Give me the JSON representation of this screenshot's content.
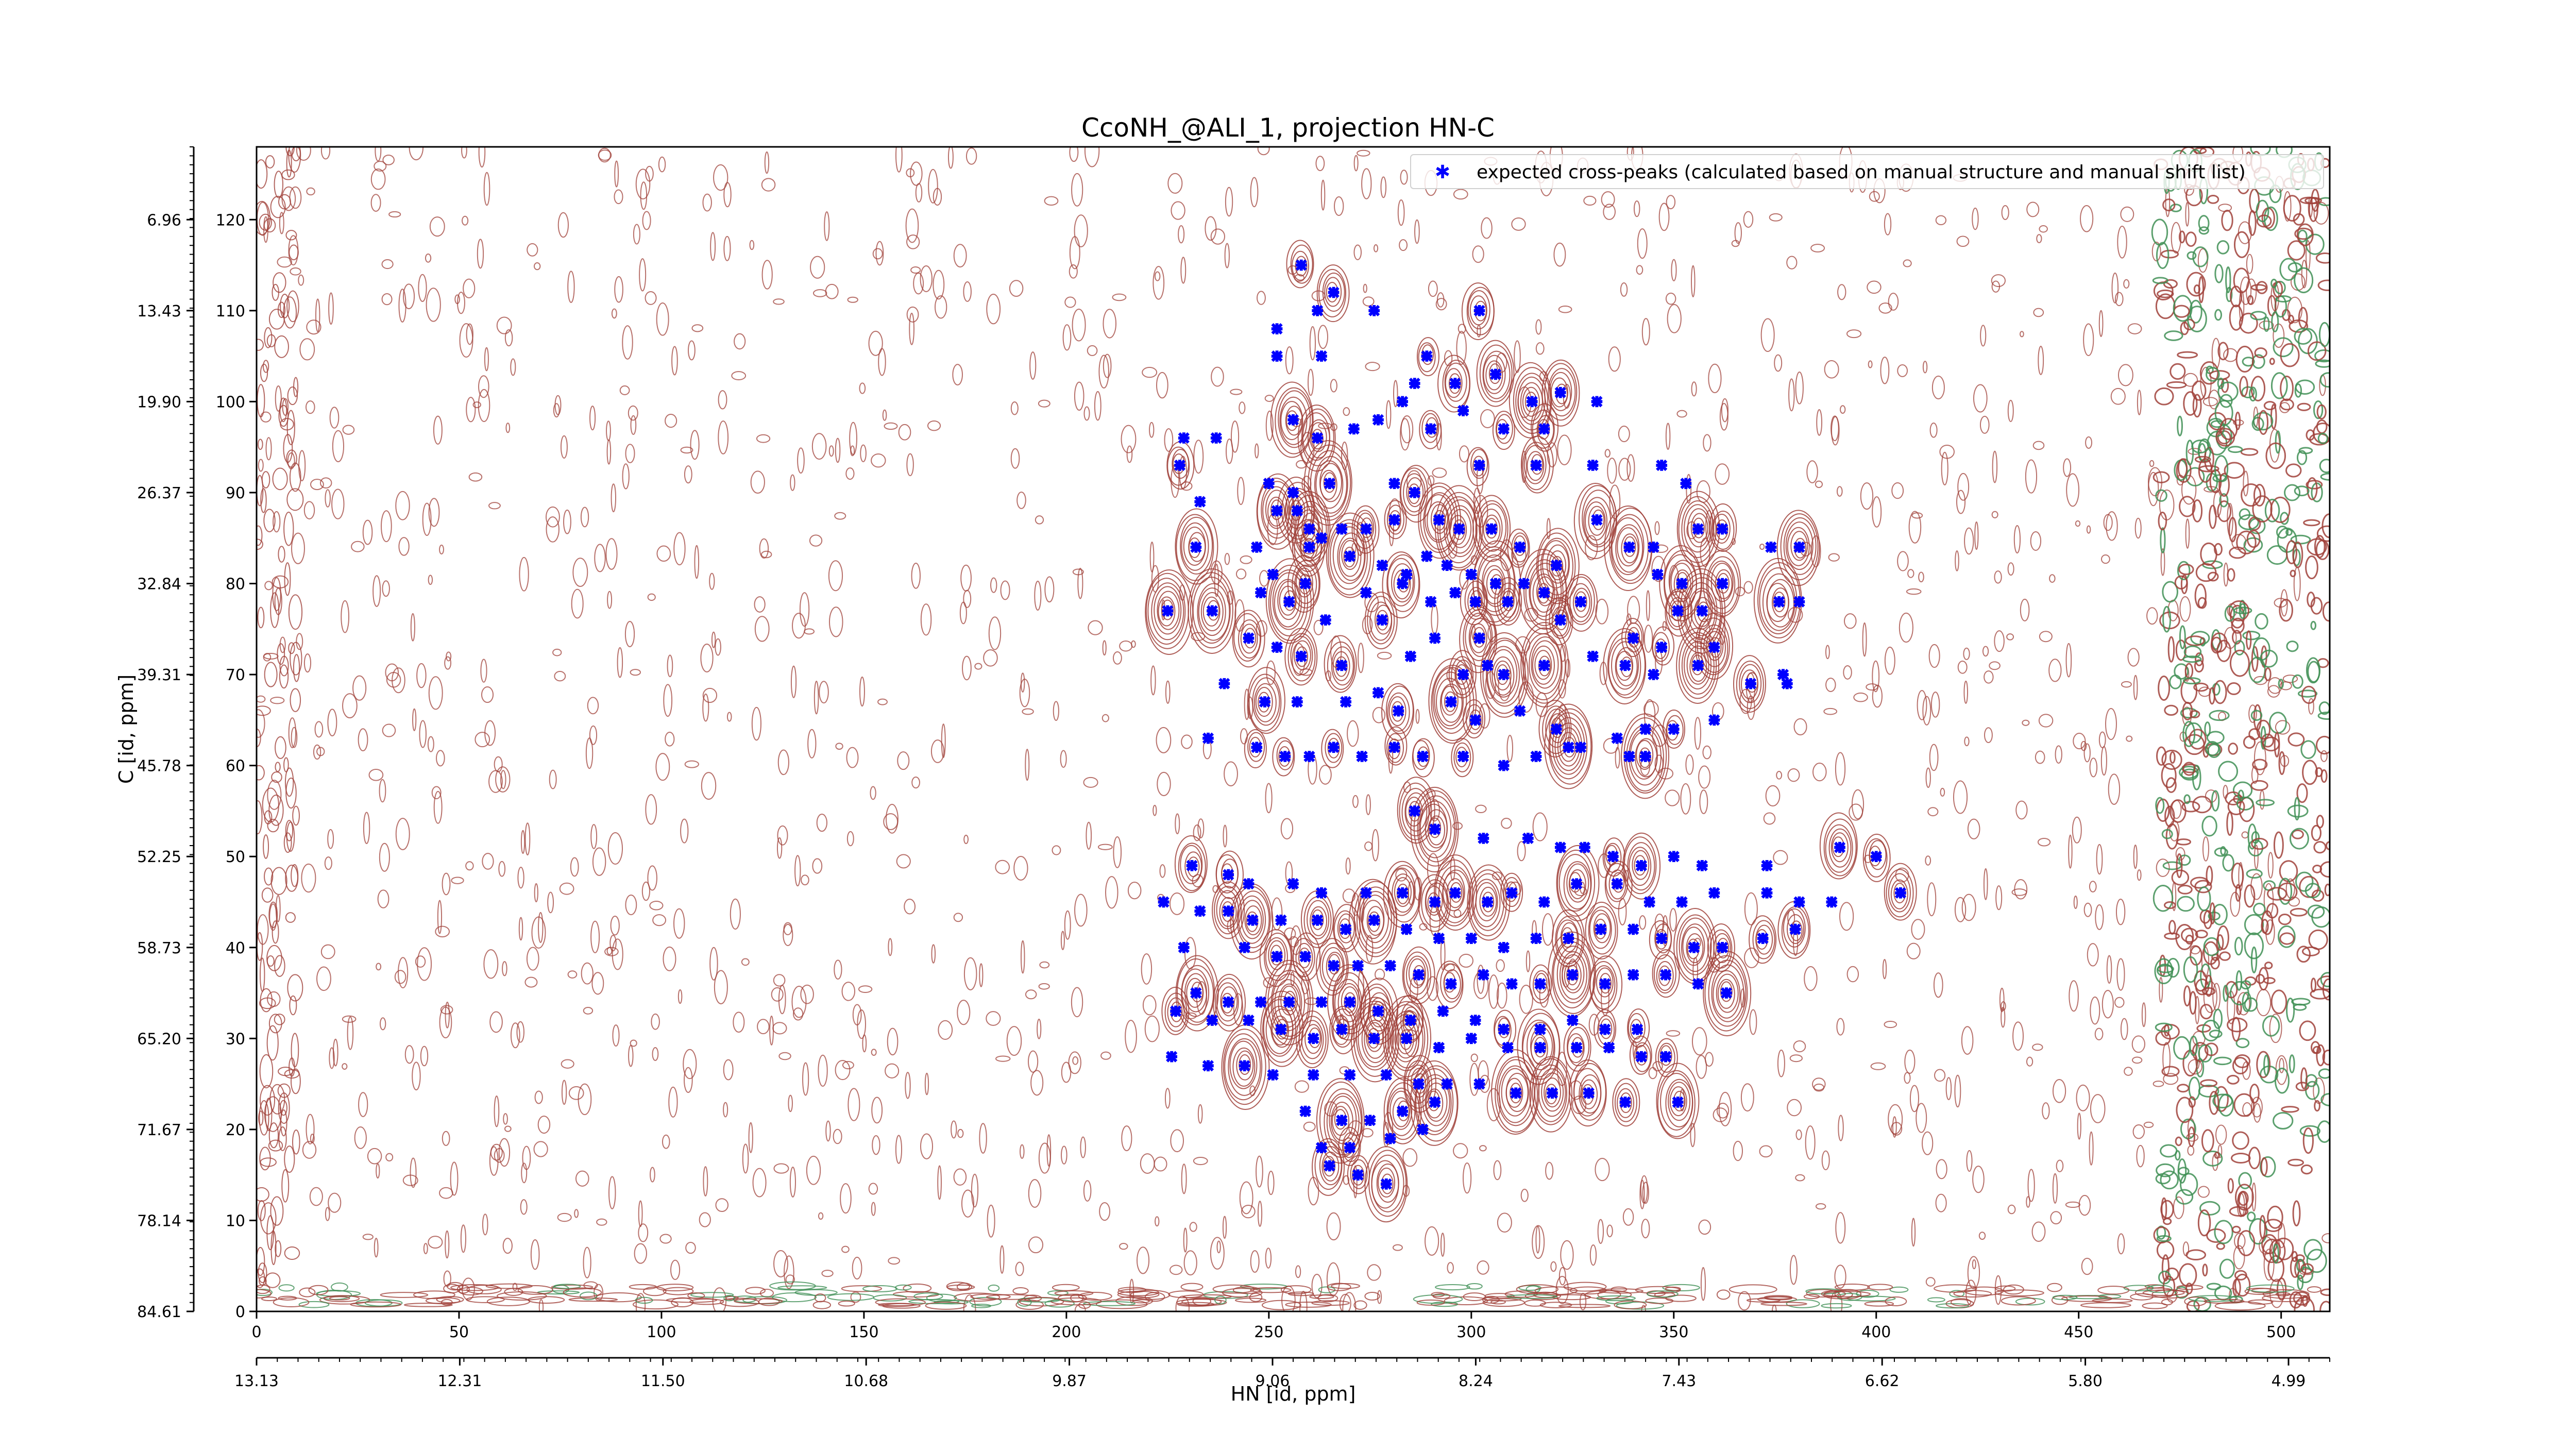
{
  "chart_data": {
    "type": "scatter",
    "title": "CcoNH_@ALI_1, projection HN-C",
    "xlabel": "HN [id, ppm]",
    "ylabel": "C [id, ppm]",
    "grid": false,
    "legend_position": "top-right",
    "xlim": [
      0,
      512
    ],
    "ylim": [
      0,
      128
    ],
    "x_ticks": [
      0,
      50,
      100,
      150,
      200,
      250,
      300,
      350,
      400,
      450,
      500
    ],
    "y_ticks": [
      0,
      10,
      20,
      30,
      40,
      50,
      60,
      70,
      80,
      90,
      100,
      110,
      120
    ],
    "x_ppm_tick_labels": [
      "13.13",
      "12.31",
      "11.50",
      "10.68",
      "9.87",
      "9.06",
      "8.24",
      "7.43",
      "6.62",
      "5.80",
      "4.99"
    ],
    "y_ppm_tick_labels": [
      "84.61",
      "78.14",
      "71.67",
      "65.20",
      "58.73",
      "52.25",
      "45.78",
      "39.31",
      "32.84",
      "26.37",
      "19.90",
      "13.43",
      "6.96"
    ],
    "colors": {
      "contour_positive": "#a0413a",
      "contour_negative": "#3f8f55",
      "peak_marker": "#0000ff"
    },
    "series": [
      {
        "name": "expected cross-peaks (calculated based on manual structure and manual shift list)",
        "color": "#0000ff",
        "marker": "x",
        "points": [
          [
            258,
            115
          ],
          [
            266,
            112
          ],
          [
            262,
            110
          ],
          [
            252,
            108
          ],
          [
            276,
            110
          ],
          [
            289,
            105
          ],
          [
            302,
            110
          ],
          [
            252,
            105
          ],
          [
            263,
            105
          ],
          [
            286,
            102
          ],
          [
            296,
            102
          ],
          [
            306,
            103
          ],
          [
            315,
            100
          ],
          [
            322,
            101
          ],
          [
            331,
            100
          ],
          [
            277,
            98
          ],
          [
            283,
            100
          ],
          [
            290,
            97
          ],
          [
            298,
            99
          ],
          [
            308,
            97
          ],
          [
            318,
            97
          ],
          [
            229,
            96
          ],
          [
            237,
            96
          ],
          [
            256,
            98
          ],
          [
            262,
            96
          ],
          [
            271,
            97
          ],
          [
            228,
            93
          ],
          [
            233,
            89
          ],
          [
            250,
            91
          ],
          [
            256,
            90
          ],
          [
            265,
            91
          ],
          [
            281,
            91
          ],
          [
            286,
            90
          ],
          [
            302,
            93
          ],
          [
            316,
            93
          ],
          [
            330,
            93
          ],
          [
            347,
            93
          ],
          [
            353,
            91
          ],
          [
            252,
            88
          ],
          [
            257,
            88
          ],
          [
            260,
            86
          ],
          [
            263,
            85
          ],
          [
            268,
            86
          ],
          [
            274,
            86
          ],
          [
            281,
            87
          ],
          [
            292,
            87
          ],
          [
            297,
            86
          ],
          [
            305,
            86
          ],
          [
            312,
            84
          ],
          [
            331,
            87
          ],
          [
            345,
            84
          ],
          [
            356,
            86
          ],
          [
            362,
            86
          ],
          [
            232,
            84
          ],
          [
            247,
            84
          ],
          [
            260,
            84
          ],
          [
            270,
            83
          ],
          [
            278,
            82
          ],
          [
            284,
            81
          ],
          [
            289,
            83
          ],
          [
            294,
            82
          ],
          [
            300,
            81
          ],
          [
            306,
            80
          ],
          [
            313,
            80
          ],
          [
            321,
            82
          ],
          [
            339,
            84
          ],
          [
            346,
            81
          ],
          [
            352,
            80
          ],
          [
            362,
            80
          ],
          [
            374,
            84
          ],
          [
            381,
            84
          ],
          [
            251,
            81
          ],
          [
            259,
            80
          ],
          [
            274,
            79
          ],
          [
            283,
            80
          ],
          [
            290,
            78
          ],
          [
            296,
            79
          ],
          [
            301,
            78
          ],
          [
            309,
            78
          ],
          [
            318,
            79
          ],
          [
            327,
            78
          ],
          [
            351,
            77
          ],
          [
            357,
            77
          ],
          [
            376,
            78
          ],
          [
            381,
            78
          ],
          [
            225,
            77
          ],
          [
            236,
            77
          ],
          [
            248,
            79
          ],
          [
            255,
            78
          ],
          [
            264,
            76
          ],
          [
            278,
            76
          ],
          [
            291,
            74
          ],
          [
            302,
            74
          ],
          [
            322,
            76
          ],
          [
            340,
            74
          ],
          [
            347,
            73
          ],
          [
            360,
            73
          ],
          [
            245,
            74
          ],
          [
            252,
            73
          ],
          [
            258,
            72
          ],
          [
            268,
            71
          ],
          [
            285,
            72
          ],
          [
            298,
            70
          ],
          [
            304,
            71
          ],
          [
            308,
            70
          ],
          [
            318,
            71
          ],
          [
            330,
            72
          ],
          [
            338,
            71
          ],
          [
            345,
            70
          ],
          [
            356,
            71
          ],
          [
            369,
            69
          ],
          [
            377,
            70
          ],
          [
            378,
            69
          ],
          [
            239,
            69
          ],
          [
            249,
            67
          ],
          [
            257,
            67
          ],
          [
            269,
            67
          ],
          [
            277,
            68
          ],
          [
            282,
            66
          ],
          [
            295,
            67
          ],
          [
            301,
            65
          ],
          [
            312,
            66
          ],
          [
            321,
            64
          ],
          [
            327,
            62
          ],
          [
            336,
            63
          ],
          [
            343,
            64
          ],
          [
            350,
            64
          ],
          [
            360,
            65
          ],
          [
            235,
            63
          ],
          [
            247,
            62
          ],
          [
            254,
            61
          ],
          [
            260,
            61
          ],
          [
            266,
            62
          ],
          [
            273,
            61
          ],
          [
            281,
            62
          ],
          [
            288,
            61
          ],
          [
            298,
            61
          ],
          [
            308,
            60
          ],
          [
            316,
            61
          ],
          [
            324,
            62
          ],
          [
            339,
            61
          ],
          [
            343,
            61
          ],
          [
            286,
            55
          ],
          [
            291,
            53
          ],
          [
            303,
            52
          ],
          [
            314,
            52
          ],
          [
            322,
            51
          ],
          [
            328,
            51
          ],
          [
            335,
            50
          ],
          [
            342,
            49
          ],
          [
            350,
            50
          ],
          [
            357,
            49
          ],
          [
            373,
            49
          ],
          [
            391,
            51
          ],
          [
            400,
            50
          ],
          [
            231,
            49
          ],
          [
            240,
            48
          ],
          [
            245,
            47
          ],
          [
            256,
            47
          ],
          [
            263,
            46
          ],
          [
            274,
            46
          ],
          [
            283,
            46
          ],
          [
            291,
            45
          ],
          [
            296,
            46
          ],
          [
            304,
            45
          ],
          [
            310,
            46
          ],
          [
            318,
            45
          ],
          [
            326,
            47
          ],
          [
            336,
            47
          ],
          [
            344,
            45
          ],
          [
            352,
            45
          ],
          [
            360,
            46
          ],
          [
            373,
            46
          ],
          [
            381,
            45
          ],
          [
            389,
            45
          ],
          [
            406,
            46
          ],
          [
            224,
            45
          ],
          [
            233,
            44
          ],
          [
            240,
            44
          ],
          [
            246,
            43
          ],
          [
            253,
            43
          ],
          [
            262,
            43
          ],
          [
            269,
            42
          ],
          [
            276,
            43
          ],
          [
            284,
            42
          ],
          [
            292,
            41
          ],
          [
            300,
            41
          ],
          [
            308,
            40
          ],
          [
            316,
            41
          ],
          [
            324,
            41
          ],
          [
            332,
            42
          ],
          [
            340,
            42
          ],
          [
            347,
            41
          ],
          [
            355,
            40
          ],
          [
            362,
            40
          ],
          [
            372,
            41
          ],
          [
            380,
            42
          ],
          [
            229,
            40
          ],
          [
            244,
            40
          ],
          [
            252,
            39
          ],
          [
            259,
            39
          ],
          [
            266,
            38
          ],
          [
            272,
            38
          ],
          [
            280,
            38
          ],
          [
            287,
            37
          ],
          [
            295,
            36
          ],
          [
            303,
            37
          ],
          [
            310,
            36
          ],
          [
            317,
            36
          ],
          [
            325,
            37
          ],
          [
            333,
            36
          ],
          [
            340,
            37
          ],
          [
            348,
            37
          ],
          [
            356,
            36
          ],
          [
            363,
            35
          ],
          [
            232,
            35
          ],
          [
            240,
            34
          ],
          [
            248,
            34
          ],
          [
            255,
            34
          ],
          [
            263,
            34
          ],
          [
            270,
            34
          ],
          [
            277,
            33
          ],
          [
            285,
            32
          ],
          [
            293,
            33
          ],
          [
            301,
            32
          ],
          [
            308,
            31
          ],
          [
            317,
            31
          ],
          [
            325,
            32
          ],
          [
            333,
            31
          ],
          [
            341,
            31
          ],
          [
            227,
            33
          ],
          [
            236,
            32
          ],
          [
            245,
            32
          ],
          [
            253,
            31
          ],
          [
            261,
            30
          ],
          [
            268,
            31
          ],
          [
            276,
            30
          ],
          [
            284,
            30
          ],
          [
            292,
            29
          ],
          [
            300,
            30
          ],
          [
            309,
            29
          ],
          [
            317,
            29
          ],
          [
            326,
            29
          ],
          [
            334,
            29
          ],
          [
            342,
            28
          ],
          [
            348,
            28
          ],
          [
            226,
            28
          ],
          [
            235,
            27
          ],
          [
            244,
            27
          ],
          [
            251,
            26
          ],
          [
            261,
            26
          ],
          [
            270,
            26
          ],
          [
            279,
            26
          ],
          [
            287,
            25
          ],
          [
            294,
            25
          ],
          [
            302,
            25
          ],
          [
            311,
            24
          ],
          [
            320,
            24
          ],
          [
            329,
            24
          ],
          [
            338,
            23
          ],
          [
            351,
            23
          ],
          [
            259,
            22
          ],
          [
            268,
            21
          ],
          [
            275,
            21
          ],
          [
            283,
            22
          ],
          [
            291,
            23
          ],
          [
            263,
            18
          ],
          [
            270,
            18
          ],
          [
            280,
            19
          ],
          [
            288,
            20
          ],
          [
            265,
            16
          ],
          [
            272,
            15
          ],
          [
            279,
            14
          ]
        ]
      }
    ]
  }
}
